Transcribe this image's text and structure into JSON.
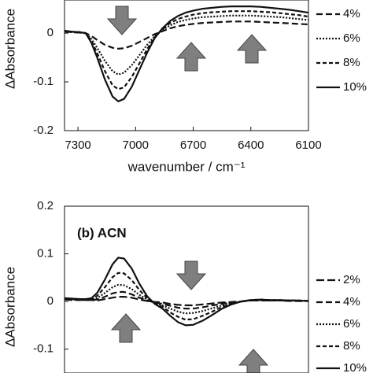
{
  "chart_data": [
    {
      "type": "line",
      "xlabel": "wavenumber / cm⁻¹",
      "ylabel": "ΔAbsorbance",
      "x": [
        7370,
        7330,
        7290,
        7260,
        7230,
        7200,
        7160,
        7120,
        7090,
        7060,
        7020,
        6980,
        6940,
        6900,
        6860,
        6820,
        6780,
        6740,
        6700,
        6650,
        6600,
        6550,
        6500,
        6450,
        6400,
        6350,
        6300,
        6250,
        6200,
        6150,
        6100
      ],
      "xlim": [
        7370,
        6100
      ],
      "xticks": [
        7300,
        7000,
        6700,
        6400,
        6100
      ],
      "ylim": [
        -0.2,
        0.068
      ],
      "yticks": [
        0,
        -0.1,
        -0.2
      ],
      "series": [
        {
          "name": "4%",
          "color": "#111111",
          "dash": "8,4",
          "values": [
            0.003,
            0.002,
            0.001,
            0,
            -0.006,
            -0.014,
            -0.024,
            -0.03,
            -0.032,
            -0.031,
            -0.026,
            -0.018,
            -0.01,
            -0.002,
            0.004,
            0.01,
            0.014,
            0.017,
            0.019,
            0.021,
            0.022,
            0.023,
            0.024,
            0.024,
            0.024,
            0.023,
            0.022,
            0.021,
            0.02,
            0.019,
            0.018
          ]
        },
        {
          "name": "6%",
          "color": "#111111",
          "dash": "2,2",
          "values": [
            0.004,
            0.002,
            0.001,
            0,
            -0.012,
            -0.03,
            -0.057,
            -0.078,
            -0.085,
            -0.081,
            -0.066,
            -0.045,
            -0.024,
            -0.006,
            0.007,
            0.016,
            0.023,
            0.027,
            0.03,
            0.033,
            0.034,
            0.035,
            0.036,
            0.036,
            0.036,
            0.035,
            0.034,
            0.033,
            0.031,
            0.029,
            0.027
          ]
        },
        {
          "name": "8%",
          "color": "#111111",
          "dash": "5,3",
          "values": [
            0.004,
            0.003,
            0.002,
            0,
            -0.016,
            -0.041,
            -0.078,
            -0.107,
            -0.115,
            -0.111,
            -0.09,
            -0.062,
            -0.033,
            -0.008,
            0.008,
            0.021,
            0.029,
            0.034,
            0.038,
            0.041,
            0.043,
            0.044,
            0.045,
            0.045,
            0.045,
            0.044,
            0.043,
            0.041,
            0.039,
            0.037,
            0.034
          ]
        },
        {
          "name": "10%",
          "color": "#111111",
          "dash": "none",
          "values": [
            0.005,
            0.003,
            0.002,
            0,
            -0.02,
            -0.05,
            -0.095,
            -0.13,
            -0.14,
            -0.135,
            -0.11,
            -0.075,
            -0.04,
            -0.01,
            0.01,
            0.025,
            0.035,
            0.042,
            0.046,
            0.05,
            0.052,
            0.054,
            0.055,
            0.055,
            0.055,
            0.054,
            0.052,
            0.05,
            0.048,
            0.045,
            0.042
          ]
        }
      ]
    },
    {
      "type": "line",
      "title": "(b) ACN",
      "ylabel": "ΔAbsorbance",
      "x": [
        7370,
        7330,
        7290,
        7260,
        7230,
        7200,
        7160,
        7120,
        7090,
        7060,
        7020,
        6980,
        6940,
        6900,
        6860,
        6820,
        6780,
        6740,
        6700,
        6650,
        6600,
        6550,
        6500,
        6450,
        6400,
        6350,
        6300,
        6250,
        6200,
        6150,
        6100
      ],
      "xlim": [
        7370,
        6100
      ],
      "ylim": [
        -0.15,
        0.2
      ],
      "yticks": [
        0.2,
        0.1,
        0,
        -0.1
      ],
      "series": [
        {
          "name": "2%",
          "color": "#111111",
          "dash": "10,4",
          "values": [
            0.004,
            0.003,
            0.003,
            0.003,
            0.003,
            0.002,
            0.005,
            0.008,
            0.01,
            0.01,
            0.008,
            0.004,
            0.001,
            -0.001,
            -0.002,
            -0.005,
            -0.007,
            -0.008,
            -0.008,
            -0.006,
            -0.004,
            -0.002,
            -0.001,
            0,
            0.002,
            0.002,
            0.002,
            0.002,
            0.001,
            0.001,
            0.001
          ]
        },
        {
          "name": "4%",
          "color": "#111111",
          "dash": "8,4",
          "values": [
            0.005,
            0.004,
            0.003,
            0.003,
            0.003,
            0.004,
            0.01,
            0.017,
            0.02,
            0.02,
            0.015,
            0.008,
            0.002,
            -0.002,
            -0.005,
            -0.009,
            -0.013,
            -0.015,
            -0.015,
            -0.012,
            -0.008,
            -0.005,
            -0.002,
            0,
            0.002,
            0.003,
            0.002,
            0.002,
            0.002,
            0.001,
            0.001
          ]
        },
        {
          "name": "6%",
          "color": "#111111",
          "dash": "2,2",
          "values": [
            0.005,
            0.004,
            0.004,
            0.004,
            0.004,
            0.007,
            0.018,
            0.03,
            0.035,
            0.034,
            0.026,
            0.014,
            0.004,
            -0.003,
            -0.008,
            -0.015,
            -0.021,
            -0.025,
            -0.024,
            -0.02,
            -0.014,
            -0.008,
            -0.003,
            0,
            0.003,
            0.003,
            0.003,
            0.002,
            0.002,
            0.002,
            0.001
          ]
        },
        {
          "name": "8%",
          "color": "#111111",
          "dash": "5,3",
          "values": [
            0.006,
            0.005,
            0.004,
            0.004,
            0.005,
            0.012,
            0.03,
            0.051,
            0.06,
            0.059,
            0.045,
            0.024,
            0.007,
            -0.004,
            -0.011,
            -0.023,
            -0.032,
            -0.038,
            -0.037,
            -0.03,
            -0.021,
            -0.011,
            -0.005,
            0,
            0.003,
            0.004,
            0.003,
            0.003,
            0.002,
            0.002,
            0.001
          ]
        },
        {
          "name": "10%",
          "color": "#111111",
          "dash": "none",
          "values": [
            0.007,
            0.006,
            0.005,
            0.005,
            0.007,
            0.018,
            0.046,
            0.078,
            0.092,
            0.09,
            0.069,
            0.037,
            0.011,
            -0.005,
            -0.015,
            -0.03,
            -0.043,
            -0.05,
            -0.049,
            -0.04,
            -0.028,
            -0.015,
            -0.006,
            0,
            0.003,
            0.004,
            0.003,
            0.003,
            0.002,
            0.002,
            0.001
          ]
        }
      ]
    }
  ]
}
